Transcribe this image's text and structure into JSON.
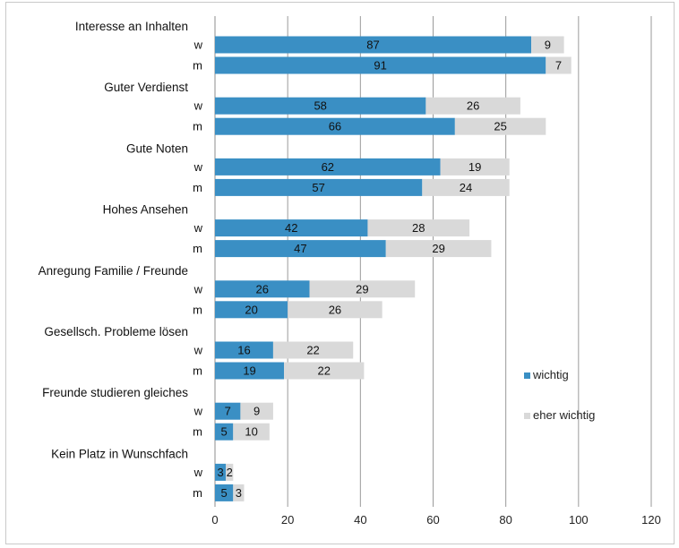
{
  "chart_data": {
    "type": "bar",
    "orientation": "horizontal",
    "stacked": true,
    "title": "",
    "xlabel": "",
    "ylabel": "",
    "xlim": [
      0,
      120
    ],
    "x_ticks": [
      "0",
      "20",
      "40",
      "60",
      "80",
      "100",
      "120"
    ],
    "grid": "vertical",
    "legend_position": "right-middle",
    "colors": {
      "wichtig": "#3a8fc4",
      "eher_wichtig": "#d9d9d9"
    },
    "series": [
      {
        "name": "wichtig"
      },
      {
        "name": "eher wichtig"
      }
    ],
    "groups": [
      {
        "label": "Interesse an Inhalten",
        "rows": [
          {
            "label": "w",
            "values": [
              87,
              9
            ]
          },
          {
            "label": "m",
            "values": [
              91,
              7
            ]
          }
        ]
      },
      {
        "label": "Guter Verdienst",
        "rows": [
          {
            "label": "w",
            "values": [
              58,
              26
            ]
          },
          {
            "label": "m",
            "values": [
              66,
              25
            ]
          }
        ]
      },
      {
        "label": "Gute Noten",
        "rows": [
          {
            "label": "w",
            "values": [
              62,
              19
            ]
          },
          {
            "label": "m",
            "values": [
              57,
              24
            ]
          }
        ]
      },
      {
        "label": "Hohes Ansehen",
        "rows": [
          {
            "label": "w",
            "values": [
              42,
              28
            ]
          },
          {
            "label": "m",
            "values": [
              47,
              29
            ]
          }
        ]
      },
      {
        "label": "Anregung Familie / Freunde",
        "rows": [
          {
            "label": "w",
            "values": [
              26,
              29
            ]
          },
          {
            "label": "m",
            "values": [
              20,
              26
            ]
          }
        ]
      },
      {
        "label": "Gesellsch. Probleme lösen",
        "rows": [
          {
            "label": "w",
            "values": [
              16,
              22
            ]
          },
          {
            "label": "m",
            "values": [
              19,
              22
            ]
          }
        ]
      },
      {
        "label": "Freunde studieren gleiches",
        "rows": [
          {
            "label": "w",
            "values": [
              7,
              9
            ]
          },
          {
            "label": "m",
            "values": [
              5,
              10
            ]
          }
        ]
      },
      {
        "label": "Kein Platz in Wunschfach",
        "rows": [
          {
            "label": "w",
            "values": [
              3,
              2
            ]
          },
          {
            "label": "m",
            "values": [
              5,
              3
            ]
          }
        ]
      }
    ]
  }
}
